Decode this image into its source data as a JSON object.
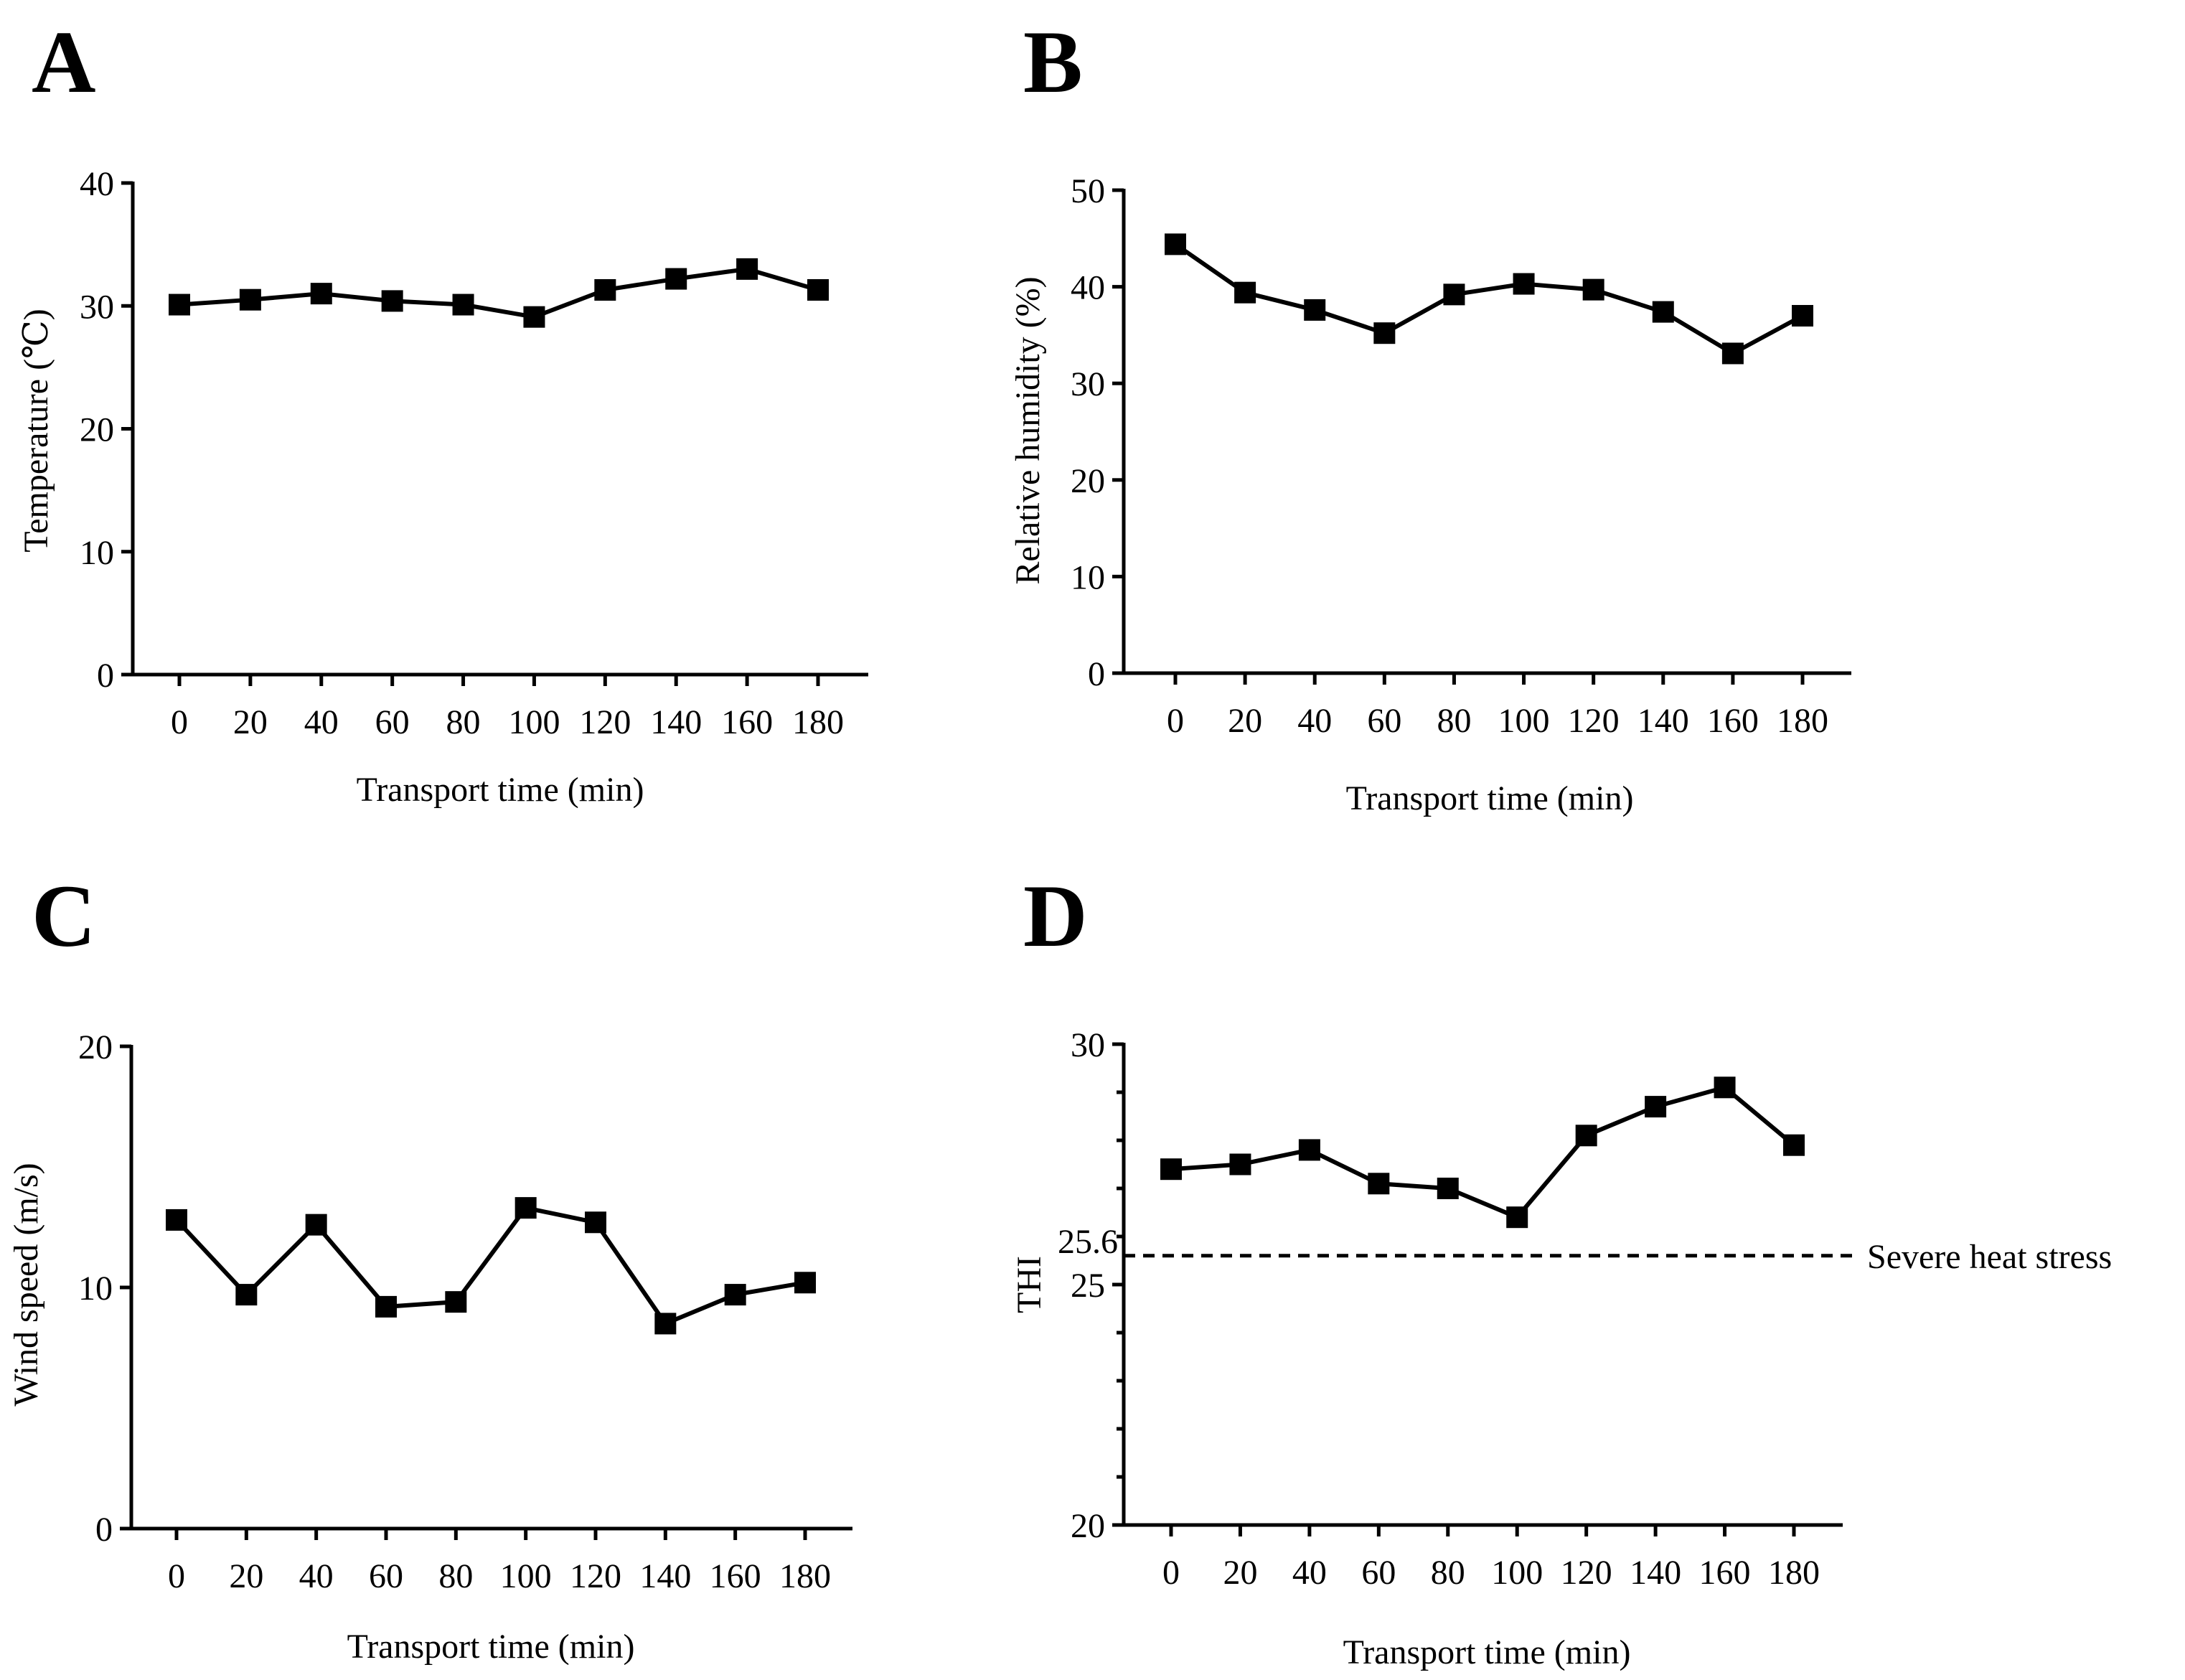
{
  "figure": {
    "colors": {
      "ink": "#000000",
      "background": "#ffffff"
    },
    "marker_icon": "filled-square"
  },
  "chart_data": [
    {
      "panel": "A",
      "type": "line",
      "xlabel": "Transport time  (min)",
      "ylabel": "Temperature (℃)",
      "categories": [
        "0",
        "20",
        "40",
        "60",
        "80",
        "100",
        "120",
        "140",
        "160",
        "180"
      ],
      "x": [
        0,
        20,
        40,
        60,
        80,
        100,
        120,
        140,
        160,
        180
      ],
      "values": [
        30.1,
        30.5,
        31.0,
        30.4,
        30.1,
        29.1,
        31.3,
        32.2,
        33.0,
        31.3
      ],
      "ylim": [
        0,
        40
      ],
      "yticks": [
        0,
        10,
        20,
        30,
        40
      ],
      "ytick_labels": [
        "0",
        "10",
        "20",
        "30",
        "40"
      ],
      "grid": false
    },
    {
      "panel": "B",
      "type": "line",
      "xlabel": "Transport time (min)",
      "ylabel": "Relative humidity (%)",
      "categories": [
        "0",
        "20",
        "40",
        "60",
        "80",
        "100",
        "120",
        "140",
        "160",
        "180"
      ],
      "x": [
        0,
        20,
        40,
        60,
        80,
        100,
        120,
        140,
        160,
        180
      ],
      "values": [
        44.4,
        39.4,
        37.6,
        35.2,
        39.2,
        40.3,
        39.7,
        37.4,
        33.1,
        37.0
      ],
      "ylim": [
        0,
        50
      ],
      "yticks": [
        0,
        10,
        20,
        30,
        40,
        50
      ],
      "ytick_labels": [
        "0",
        "10",
        "20",
        "30",
        "40",
        "50"
      ],
      "grid": false
    },
    {
      "panel": "C",
      "type": "line",
      "xlabel": "Transport time (min)",
      "ylabel": "Wind speed (m/s)",
      "categories": [
        "0",
        "20",
        "40",
        "60",
        "80",
        "100",
        "120",
        "140",
        "160",
        "180"
      ],
      "x": [
        0,
        20,
        40,
        60,
        80,
        100,
        120,
        140,
        160,
        180
      ],
      "values": [
        12.8,
        9.7,
        12.6,
        9.2,
        9.4,
        13.3,
        12.7,
        8.5,
        9.7,
        10.2
      ],
      "ylim": [
        0,
        20
      ],
      "yticks": [
        0,
        10,
        20
      ],
      "ytick_labels": [
        "0",
        "10",
        "20"
      ],
      "minor_yticks": [],
      "grid": false
    },
    {
      "panel": "D",
      "type": "line",
      "xlabel": "Transport time (min)",
      "ylabel": "THI",
      "categories": [
        "0",
        "20",
        "40",
        "60",
        "80",
        "100",
        "120",
        "140",
        "160",
        "180"
      ],
      "x": [
        0,
        20,
        40,
        60,
        80,
        100,
        120,
        140,
        160,
        180
      ],
      "values": [
        27.4,
        27.5,
        27.8,
        27.1,
        27.0,
        26.4,
        28.1,
        28.7,
        29.1,
        27.9
      ],
      "ylim": [
        20,
        30
      ],
      "yticks": [
        20,
        25,
        30
      ],
      "ytick_labels": [
        "20",
        "25",
        "30"
      ],
      "minor_yticks": [
        21,
        22,
        23,
        24,
        26,
        27,
        28,
        29
      ],
      "reference_line": {
        "value": 25.6,
        "label": "25.6",
        "style": "dashed",
        "annotation": "Severe heat stress"
      },
      "grid": false
    }
  ]
}
